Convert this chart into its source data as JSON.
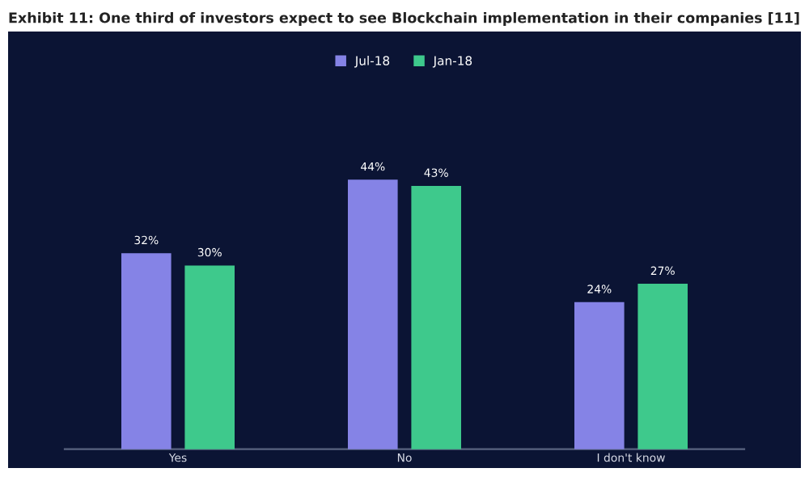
{
  "chart_data": {
    "type": "bar",
    "title": "Exhibit 11: One third of investors expect to see Blockchain implementation in their companies [11]",
    "categories": [
      "Yes",
      "No",
      "I don't know"
    ],
    "series": [
      {
        "name": "Jul-18",
        "color": "#8583e6",
        "values": [
          32,
          44,
          24
        ],
        "value_labels": [
          "32%",
          "44%",
          "24%"
        ]
      },
      {
        "name": "Jan-18",
        "color": "#3ec98c",
        "values": [
          30,
          43,
          27
        ],
        "value_labels": [
          "30%",
          "43%",
          "27%"
        ]
      }
    ],
    "legend": "top"
  }
}
